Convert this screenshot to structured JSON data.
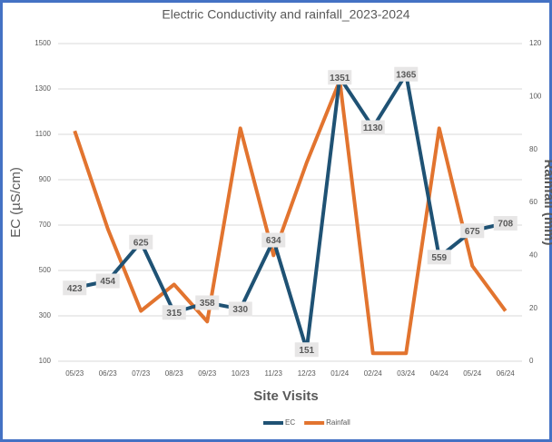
{
  "chart_data": {
    "type": "line",
    "title": "Electric Conductivity and rainfall_2023-2024",
    "xlabel": "Site Visits",
    "ylabel": "EC (µS/cm)",
    "y2label": "Rainfall (mm)",
    "categories": [
      "05/23",
      "06/23",
      "07/23",
      "08/23",
      "09/23",
      "10/23",
      "11/23",
      "12/23",
      "01/24",
      "02/24",
      "03/24",
      "04/24",
      "05/24",
      "06/24"
    ],
    "series": [
      {
        "name": "EC",
        "color": "#1f5274",
        "values": [
          423,
          454,
          625,
          315,
          358,
          330,
          634,
          151,
          1351,
          1130,
          1365,
          559,
          675,
          708
        ],
        "data_labels": true
      },
      {
        "name": "Rainfall",
        "color": "#e2742f",
        "axis": "y2",
        "values": [
          87,
          50,
          19,
          29,
          15,
          88,
          40,
          75,
          106,
          3,
          3,
          88,
          36,
          19
        ]
      }
    ],
    "ylim": [
      100,
      1500
    ],
    "yticks": [
      100,
      300,
      500,
      700,
      900,
      1100,
      1300,
      1500
    ],
    "y2lim": [
      0,
      120
    ],
    "y2ticks": [
      0,
      20,
      40,
      60,
      80,
      100,
      120
    ],
    "grid": true,
    "legend": "bottom"
  }
}
